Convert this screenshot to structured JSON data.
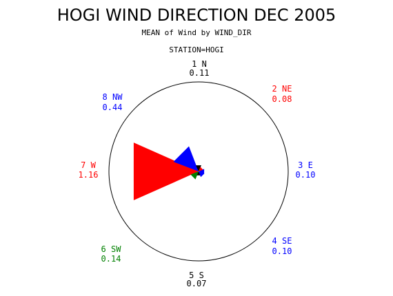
{
  "chart_data": {
    "type": "wind-rose",
    "title": "HOGI WIND DIRECTION DEC 2005",
    "subtitle": "MEAN of Wind by WIND_DIR",
    "station": "STATION=HOGI",
    "directions": [
      {
        "code": "1 N",
        "value": "0.11",
        "v": 0.11,
        "angle": 0,
        "color": "#000000"
      },
      {
        "code": "2 NE",
        "value": "0.08",
        "v": 0.08,
        "angle": 45,
        "color": "#ff0000"
      },
      {
        "code": "3 E",
        "value": "0.10",
        "v": 0.1,
        "angle": 90,
        "color": "#0000ff"
      },
      {
        "code": "4 SE",
        "value": "0.10",
        "v": 0.1,
        "angle": 135,
        "color": "#0000ff"
      },
      {
        "code": "5 S",
        "value": "0.07",
        "v": 0.07,
        "angle": 180,
        "color": "#000000"
      },
      {
        "code": "6 SW",
        "value": "0.14",
        "v": 0.14,
        "angle": 225,
        "color": "#008000"
      },
      {
        "code": "7 W",
        "value": "1.16",
        "v": 1.16,
        "angle": 270,
        "color": "#ff0000"
      },
      {
        "code": "8 NW",
        "value": "0.44",
        "v": 0.44,
        "angle": 315,
        "color": "#0000ff"
      }
    ],
    "max_value": 1.16
  }
}
